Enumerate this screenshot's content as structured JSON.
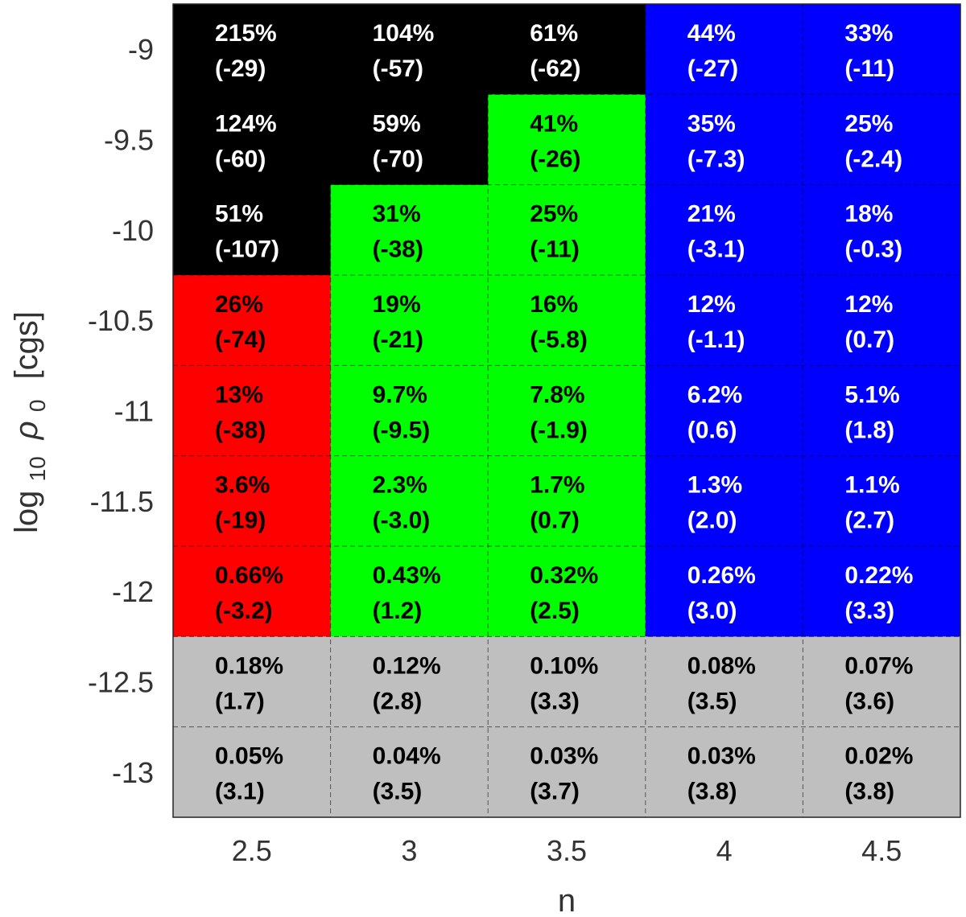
{
  "chart_data": {
    "type": "heatmap",
    "title": "",
    "xlabel": "n",
    "ylabel_parts": {
      "log": "log",
      "sub": "10",
      "rho": "ρ",
      "rho_sub": "0",
      "unit": "[cgs]"
    },
    "x": [
      "2.5",
      "3",
      "3.5",
      "4",
      "4.5"
    ],
    "y": [
      "-9",
      "-9.5",
      "-10",
      "-10.5",
      "-11",
      "-11.5",
      "-12",
      "-12.5",
      "-13"
    ],
    "category_colors": {
      "black": "#000000",
      "red": "#ff0000",
      "green": "#00ff00",
      "blue": "#0000ff",
      "gray": "#bfbfbf"
    },
    "cells": [
      [
        {
          "pct": "215%",
          "val": "(-29)",
          "cat": "black"
        },
        {
          "pct": "104%",
          "val": "(-57)",
          "cat": "black"
        },
        {
          "pct": "61%",
          "val": "(-62)",
          "cat": "black"
        },
        {
          "pct": "44%",
          "val": "(-27)",
          "cat": "blue"
        },
        {
          "pct": "33%",
          "val": "(-11)",
          "cat": "blue"
        }
      ],
      [
        {
          "pct": "124%",
          "val": "(-60)",
          "cat": "black"
        },
        {
          "pct": "59%",
          "val": "(-70)",
          "cat": "black"
        },
        {
          "pct": "41%",
          "val": "(-26)",
          "cat": "green"
        },
        {
          "pct": "35%",
          "val": "(-7.3)",
          "cat": "blue"
        },
        {
          "pct": "25%",
          "val": "(-2.4)",
          "cat": "blue"
        }
      ],
      [
        {
          "pct": "51%",
          "val": "(-107)",
          "cat": "black"
        },
        {
          "pct": "31%",
          "val": "(-38)",
          "cat": "green"
        },
        {
          "pct": "25%",
          "val": "(-11)",
          "cat": "green"
        },
        {
          "pct": "21%",
          "val": "(-3.1)",
          "cat": "blue"
        },
        {
          "pct": "18%",
          "val": "(-0.3)",
          "cat": "blue"
        }
      ],
      [
        {
          "pct": "26%",
          "val": "(-74)",
          "cat": "red"
        },
        {
          "pct": "19%",
          "val": "(-21)",
          "cat": "green"
        },
        {
          "pct": "16%",
          "val": "(-5.8)",
          "cat": "green"
        },
        {
          "pct": "12%",
          "val": "(-1.1)",
          "cat": "blue"
        },
        {
          "pct": "12%",
          "val": "(0.7)",
          "cat": "blue"
        }
      ],
      [
        {
          "pct": "13%",
          "val": "(-38)",
          "cat": "red"
        },
        {
          "pct": "9.7%",
          "val": "(-9.5)",
          "cat": "green"
        },
        {
          "pct": "7.8%",
          "val": "(-1.9)",
          "cat": "green"
        },
        {
          "pct": "6.2%",
          "val": "(0.6)",
          "cat": "blue"
        },
        {
          "pct": "5.1%",
          "val": "(1.8)",
          "cat": "blue"
        }
      ],
      [
        {
          "pct": "3.6%",
          "val": "(-19)",
          "cat": "red"
        },
        {
          "pct": "2.3%",
          "val": "(-3.0)",
          "cat": "green"
        },
        {
          "pct": "1.7%",
          "val": "(0.7)",
          "cat": "green"
        },
        {
          "pct": "1.3%",
          "val": "(2.0)",
          "cat": "blue"
        },
        {
          "pct": "1.1%",
          "val": "(2.7)",
          "cat": "blue"
        }
      ],
      [
        {
          "pct": "0.66%",
          "val": "(-3.2)",
          "cat": "red"
        },
        {
          "pct": "0.43%",
          "val": "(1.2)",
          "cat": "green"
        },
        {
          "pct": "0.32%",
          "val": "(2.5)",
          "cat": "green"
        },
        {
          "pct": "0.26%",
          "val": "(3.0)",
          "cat": "blue"
        },
        {
          "pct": "0.22%",
          "val": "(3.3)",
          "cat": "blue"
        }
      ],
      [
        {
          "pct": "0.18%",
          "val": "(1.7)",
          "cat": "gray"
        },
        {
          "pct": "0.12%",
          "val": "(2.8)",
          "cat": "gray"
        },
        {
          "pct": "0.10%",
          "val": "(3.3)",
          "cat": "gray"
        },
        {
          "pct": "0.08%",
          "val": "(3.5)",
          "cat": "gray"
        },
        {
          "pct": "0.07%",
          "val": "(3.6)",
          "cat": "gray"
        }
      ],
      [
        {
          "pct": "0.05%",
          "val": "(3.1)",
          "cat": "gray"
        },
        {
          "pct": "0.04%",
          "val": "(3.5)",
          "cat": "gray"
        },
        {
          "pct": "0.03%",
          "val": "(3.7)",
          "cat": "gray"
        },
        {
          "pct": "0.03%",
          "val": "(3.8)",
          "cat": "gray"
        },
        {
          "pct": "0.02%",
          "val": "(3.8)",
          "cat": "gray"
        }
      ]
    ],
    "grid": true
  }
}
